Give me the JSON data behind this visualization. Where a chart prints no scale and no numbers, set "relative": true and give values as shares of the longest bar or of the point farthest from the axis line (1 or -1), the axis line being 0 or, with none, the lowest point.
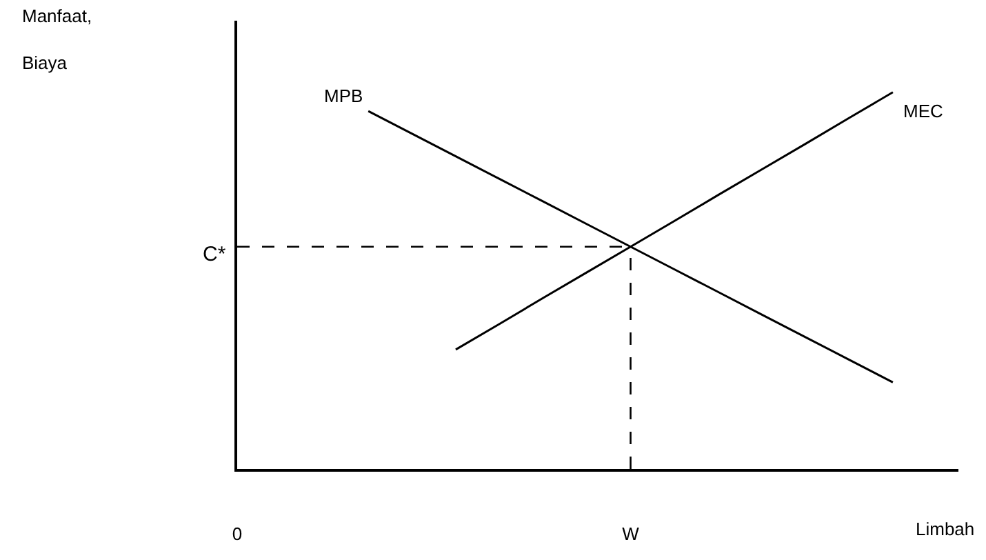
{
  "chart_data": {
    "type": "line",
    "relative": true,
    "xlabel": "Limbah",
    "ylabel": "Manfaat,\nBiaya",
    "categories": [
      "0",
      null,
      null,
      null,
      null,
      null,
      null,
      null,
      null,
      "W",
      null,
      null,
      null,
      null,
      null,
      null,
      null
    ],
    "series": [
      {
        "name": "MPB",
        "color": "#000000",
        "values": [
          null,
          null,
          null,
          0.95,
          0.89,
          0.83,
          0.77,
          0.71,
          0.65,
          0.59,
          0.53,
          0.47,
          0.41,
          0.35,
          0.29,
          0.23,
          null
        ]
      },
      {
        "name": "MEC",
        "color": "#000000",
        "values": [
          null,
          null,
          null,
          null,
          null,
          0.317,
          0.385,
          0.454,
          0.522,
          0.59,
          0.658,
          0.727,
          0.795,
          0.863,
          0.932,
          1.0,
          null
        ]
      }
    ],
    "ref_lines": [
      {
        "axis": "y",
        "value": 0.59,
        "label": "C*",
        "line_style": "dashed",
        "color": "#000000"
      },
      {
        "axis": "x",
        "value": "W",
        "label": null,
        "line_style": "dashed",
        "color": "#000000"
      }
    ],
    "legend": false,
    "marker": "none",
    "line_style": "solid"
  }
}
